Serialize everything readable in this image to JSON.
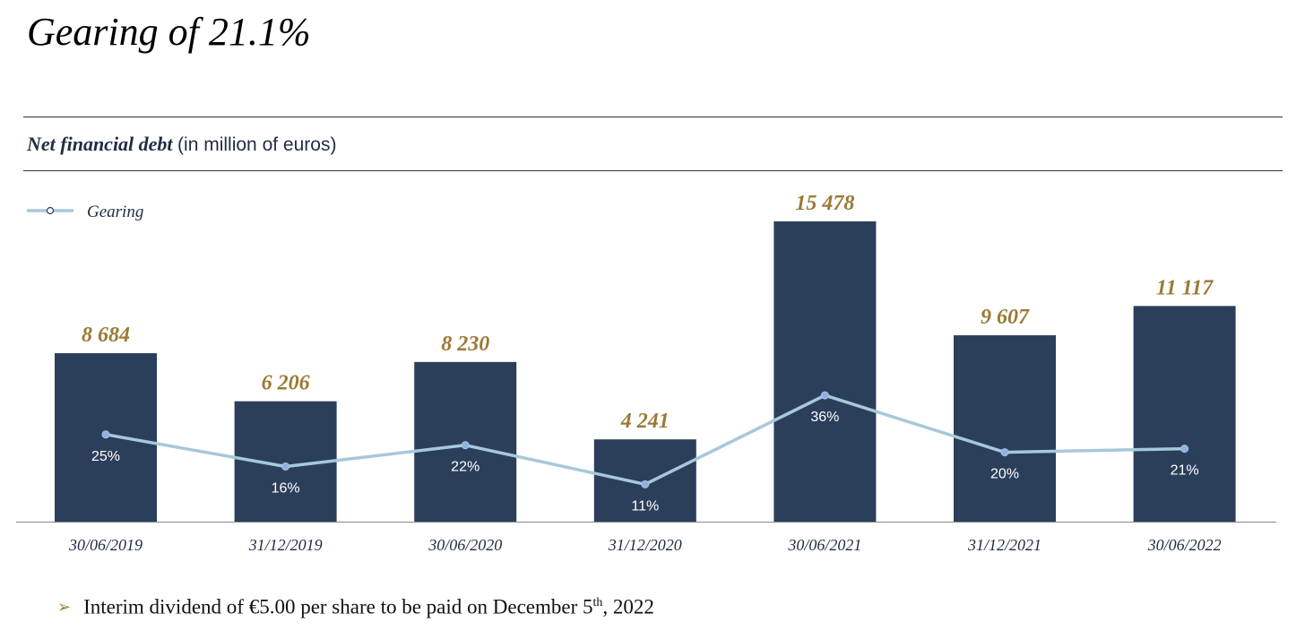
{
  "title": "Gearing of 21.1%",
  "subtitle": {
    "bold": "Net financial debt",
    "unit": "(in million of euros)"
  },
  "colors": {
    "bar": "#2b3f5b",
    "line": "#a7c8da",
    "point": "#8fb0e6",
    "bar_label": "#9a7a35",
    "axis": "#888888",
    "text_dark": "#1f2d44"
  },
  "chart_data": {
    "type": "bar",
    "categories": [
      "30/06/2019",
      "31/12/2019",
      "30/06/2020",
      "31/12/2020",
      "30/06/2021",
      "31/12/2021",
      "30/06/2022"
    ],
    "series": [
      {
        "type": "bar",
        "values": [
          8684,
          6206,
          8230,
          4241,
          15478,
          9607,
          11117
        ],
        "labels": [
          "8 684",
          "6 206",
          "8 230",
          "4 241",
          "15 478",
          "9 607",
          "11 117"
        ]
      },
      {
        "name": "Gearing",
        "type": "line",
        "values": [
          25,
          16,
          22,
          11,
          36,
          20,
          21
        ],
        "labels": [
          "25%",
          "16%",
          "22%",
          "11%",
          "36%",
          "20%",
          "21%"
        ]
      }
    ],
    "legend": {
      "position": "top-left",
      "entries": [
        "Gearing"
      ]
    },
    "grid": false
  },
  "footer": {
    "text_before": "Interim dividend of €5.00 per share to be paid on December 5",
    "superscript": "th",
    "text_after": ", 2022"
  }
}
